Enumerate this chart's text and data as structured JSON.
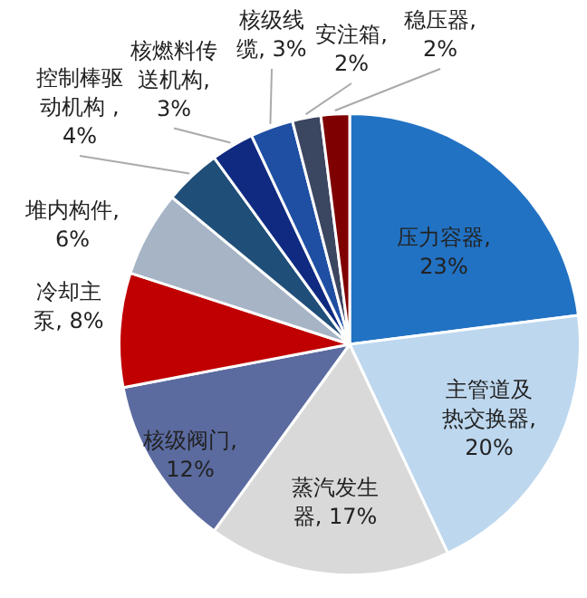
{
  "chart_data": {
    "type": "pie",
    "categories": [
      "压力容器",
      "主管道及热交换器",
      "蒸汽发生器",
      "核级阀门",
      "冷却主泵",
      "堆内构件",
      "控制棒驱动机构",
      "核燃料传送机构",
      "核级线缆",
      "安注箱",
      "稳压器"
    ],
    "values": [
      23,
      20,
      17,
      12,
      8,
      6,
      4,
      3,
      3,
      2,
      2
    ],
    "colors": [
      "#2272c3",
      "#bdd7ee",
      "#d9d9d9",
      "#5b6ba0",
      "#c00000",
      "#a6b4c6",
      "#1f4e79",
      "#0f2a80",
      "#1f4fa3",
      "#3b4660",
      "#7f0000"
    ],
    "value_labels": [
      ",\n23%",
      ",\n20%",
      ", 17%",
      ",\n12%",
      ", 8%",
      ",\n6%",
      " ,\n4%",
      ",\n3%",
      ", 3%",
      ",\n2%",
      ",\n2%"
    ]
  }
}
